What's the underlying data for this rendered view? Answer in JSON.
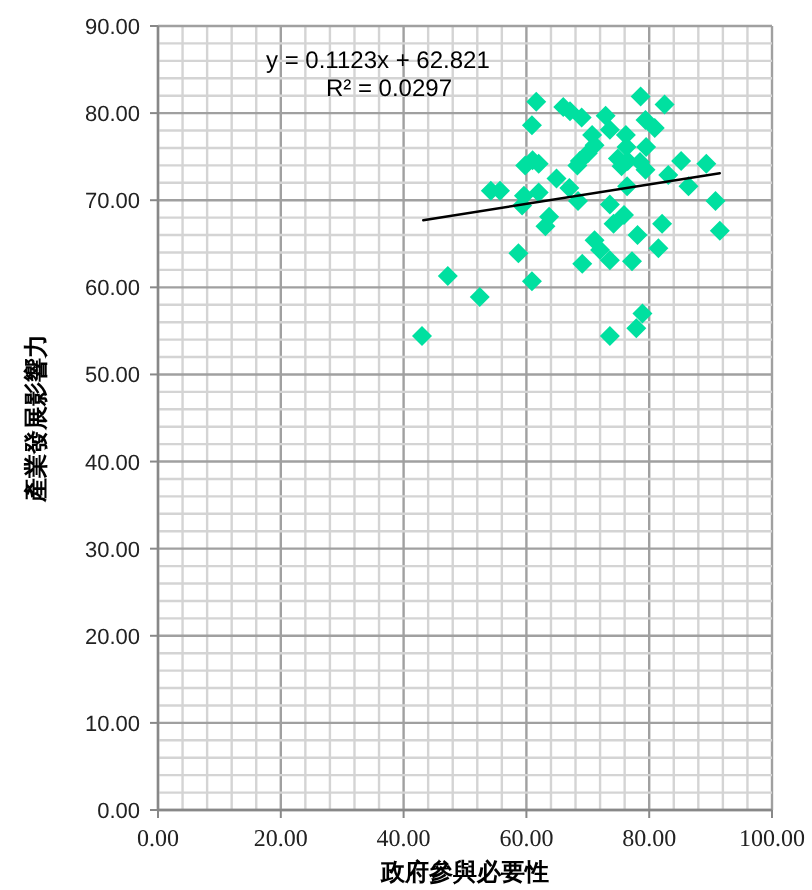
{
  "chart_data": {
    "type": "scatter",
    "xlabel": "政府參與必要性",
    "ylabel": "產業發展影響力",
    "annotations": [
      "y = 0.1123x + 62.821",
      "R² = 0.0297"
    ],
    "xlim": [
      0,
      100
    ],
    "ylim": [
      0,
      90
    ],
    "xticks": [
      {
        "value": 0,
        "label": "0.00"
      },
      {
        "value": 20,
        "label": "20.00"
      },
      {
        "value": 40,
        "label": "40.00"
      },
      {
        "value": 60,
        "label": "60.00"
      },
      {
        "value": 80,
        "label": "80.00"
      },
      {
        "value": 100,
        "label": "100.00"
      }
    ],
    "yticks": [
      {
        "value": 0,
        "label": "0.00"
      },
      {
        "value": 10,
        "label": "10.00"
      },
      {
        "value": 20,
        "label": "20.00"
      },
      {
        "value": 30,
        "label": "30.00"
      },
      {
        "value": 40,
        "label": "40.00"
      },
      {
        "value": 50,
        "label": "50.00"
      },
      {
        "value": 60,
        "label": "60.00"
      },
      {
        "value": 70,
        "label": "70.00"
      },
      {
        "value": 80,
        "label": "80.00"
      },
      {
        "value": 90,
        "label": "90.00"
      }
    ],
    "grid": true,
    "series": [
      {
        "marker": "diamond",
        "color": "#00e0a0",
        "x": [
          61.6,
          60.9,
          66.0,
          67.1,
          69.0,
          72.9,
          73.6,
          78.6,
          82.5,
          79.4,
          80.9,
          76.2,
          70.7,
          71.1,
          76.3,
          79.5,
          70.0,
          68.7,
          61.0,
          59.8,
          62.0,
          74.9,
          76.5,
          78.5,
          75.5,
          79.4,
          85.2,
          89.3,
          83.1,
          68.3,
          64.9,
          54.2,
          55.7,
          59.6,
          62.0,
          59.3,
          67.0,
          68.4,
          76.4,
          86.4,
          90.8,
          73.6,
          63.7,
          63.1,
          75.9,
          74.2,
          82.1,
          91.5,
          78.1,
          71.1,
          72.0,
          81.5,
          58.7,
          73.6,
          69.1,
          77.2,
          47.2,
          60.9,
          52.4,
          43.0,
          73.6,
          77.9,
          78.9
        ],
        "values": [
          81.3,
          78.6,
          80.7,
          80.2,
          79.5,
          79.7,
          78.1,
          81.9,
          81.0,
          79.2,
          78.3,
          77.5,
          77.5,
          76.3,
          76.1,
          76.1,
          75.4,
          74.5,
          74.6,
          74.0,
          74.2,
          74.8,
          74.5,
          74.4,
          73.9,
          73.5,
          74.5,
          74.2,
          72.9,
          74.0,
          72.5,
          71.1,
          71.1,
          70.5,
          70.9,
          69.4,
          71.4,
          69.9,
          71.6,
          71.6,
          69.9,
          69.5,
          68.1,
          67.0,
          68.3,
          67.3,
          67.3,
          66.5,
          66.0,
          65.4,
          64.3,
          64.5,
          63.9,
          63.1,
          62.7,
          63.0,
          61.3,
          60.7,
          58.9,
          54.4,
          54.4,
          55.3,
          57.0
        ]
      },
      {
        "type": "line",
        "color": "#000000",
        "x": [
          43.2,
          91.5
        ],
        "values": [
          67.7,
          73.1
        ]
      }
    ]
  }
}
